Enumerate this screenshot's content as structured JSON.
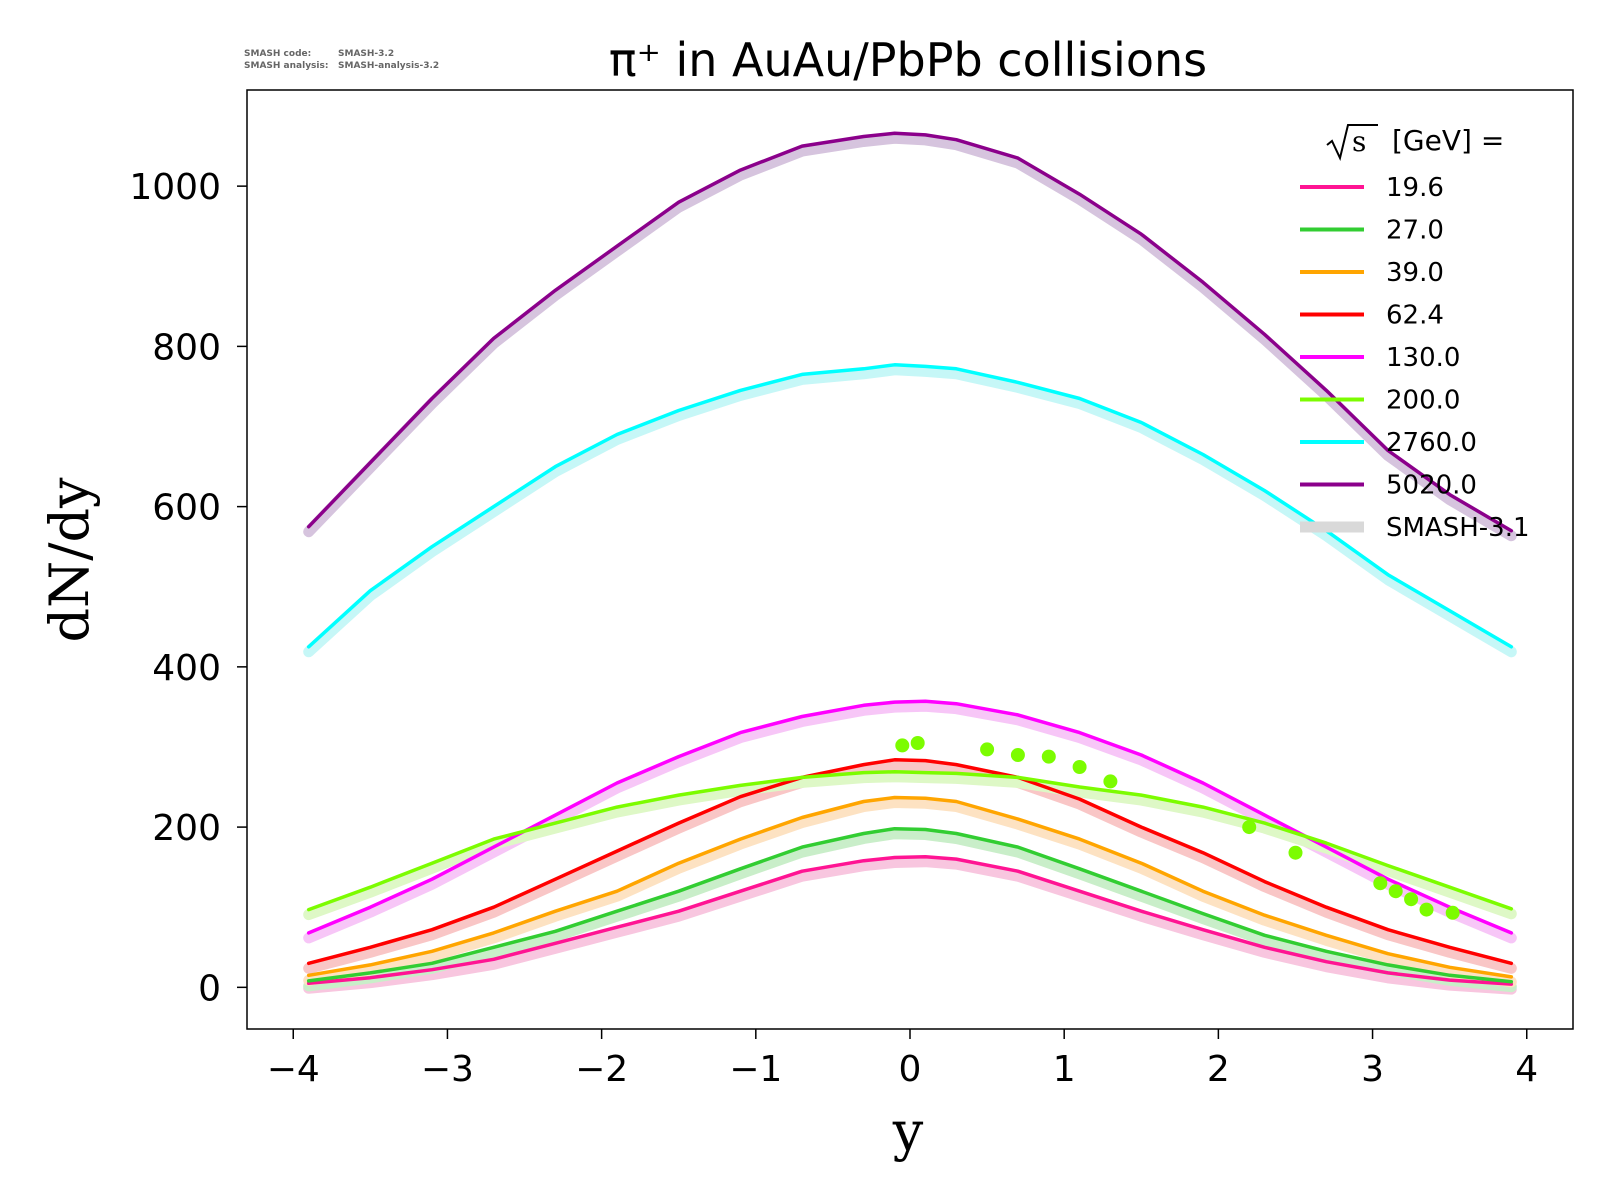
{
  "meta": {
    "code_label": "SMASH code:",
    "code_value": "SMASH-3.2",
    "analysis_label": "SMASH analysis:",
    "analysis_value": "SMASH-analysis-3.2"
  },
  "chart_data": {
    "type": "line",
    "title": "π⁺ in AuAu/PbPb collisions",
    "xlabel": "y",
    "ylabel": "dN/dy",
    "xlim": [
      -4.3,
      4.3
    ],
    "ylim": [
      -52,
      1120
    ],
    "xticks": [
      -4,
      -3,
      -2,
      -1,
      0,
      1,
      2,
      3,
      4
    ],
    "xtick_labels": [
      "−4",
      "−3",
      "−2",
      "−1",
      "0",
      "1",
      "2",
      "3",
      "4"
    ],
    "yticks": [
      0,
      200,
      400,
      600,
      800,
      1000
    ],
    "ytick_labels": [
      "0",
      "200",
      "400",
      "600",
      "800",
      "1000"
    ],
    "grid": false,
    "legend_position": "top-right",
    "legend_title_sqrt": "s",
    "legend_title": "[GeV] =",
    "reference_label": "SMASH-3.1",
    "reference_color": "#d9d9d9",
    "x": [
      -3.9,
      -3.5,
      -3.1,
      -2.7,
      -2.3,
      -1.9,
      -1.5,
      -1.1,
      -0.7,
      -0.3,
      -0.1,
      0.1,
      0.3,
      0.7,
      1.1,
      1.5,
      1.9,
      2.3,
      2.7,
      3.1,
      3.5,
      3.9
    ],
    "series": [
      {
        "name": "19.6",
        "color": "#ff1493",
        "ref_color": "#f8c6df",
        "values": [
          5,
          12,
          22,
          35,
          55,
          75,
          95,
          120,
          145,
          158,
          162,
          163,
          160,
          145,
          120,
          95,
          72,
          50,
          32,
          18,
          9,
          4
        ]
      },
      {
        "name": "27.0",
        "color": "#32cd32",
        "ref_color": "#c9eec9",
        "values": [
          8,
          18,
          30,
          50,
          70,
          95,
          120,
          148,
          175,
          192,
          198,
          197,
          192,
          175,
          148,
          120,
          92,
          65,
          45,
          28,
          15,
          7
        ]
      },
      {
        "name": "39.0",
        "color": "#ffa500",
        "ref_color": "#fde2c2",
        "values": [
          15,
          28,
          45,
          68,
          95,
          120,
          155,
          185,
          212,
          232,
          237,
          236,
          232,
          210,
          185,
          155,
          120,
          90,
          65,
          42,
          25,
          13
        ]
      },
      {
        "name": "62.4",
        "color": "#ff0000",
        "ref_color": "#f9c6c6",
        "values": [
          30,
          50,
          72,
          100,
          135,
          170,
          205,
          238,
          262,
          278,
          284,
          283,
          278,
          262,
          235,
          200,
          168,
          132,
          100,
          72,
          50,
          30
        ]
      },
      {
        "name": "130.0",
        "color": "#ff00ff",
        "ref_color": "#f7c6f7",
        "values": [
          68,
          100,
          135,
          175,
          215,
          255,
          288,
          318,
          338,
          352,
          356,
          357,
          354,
          340,
          318,
          290,
          255,
          215,
          175,
          135,
          100,
          68
        ]
      },
      {
        "name": "200.0",
        "color": "#7cfc00",
        "ref_color": "#def8c6",
        "values": [
          97,
          125,
          155,
          185,
          205,
          225,
          240,
          252,
          262,
          268,
          269,
          268,
          267,
          262,
          250,
          240,
          225,
          205,
          180,
          152,
          125,
          98
        ]
      },
      {
        "name": "2760.0",
        "color": "#00ffff",
        "ref_color": "#c6f7f7",
        "values": [
          425,
          495,
          550,
          600,
          650,
          690,
          720,
          745,
          765,
          772,
          777,
          775,
          772,
          755,
          735,
          705,
          665,
          620,
          570,
          515,
          470,
          425
        ]
      },
      {
        "name": "5020.0",
        "color": "#8b008b",
        "ref_color": "#d6c4de",
        "values": [
          575,
          655,
          735,
          810,
          870,
          925,
          980,
          1020,
          1050,
          1062,
          1066,
          1064,
          1058,
          1035,
          990,
          940,
          880,
          815,
          745,
          670,
          615,
          570
        ]
      }
    ],
    "markers": {
      "color": "#7cfc00",
      "x": [
        -0.05,
        0.05,
        0.5,
        0.7,
        0.9,
        1.1,
        1.3,
        2.2,
        2.5,
        3.05,
        3.15,
        3.25,
        3.35,
        3.52
      ],
      "y": [
        302,
        305,
        297,
        290,
        288,
        275,
        257,
        200,
        168,
        130,
        120,
        110,
        97,
        93
      ]
    }
  }
}
